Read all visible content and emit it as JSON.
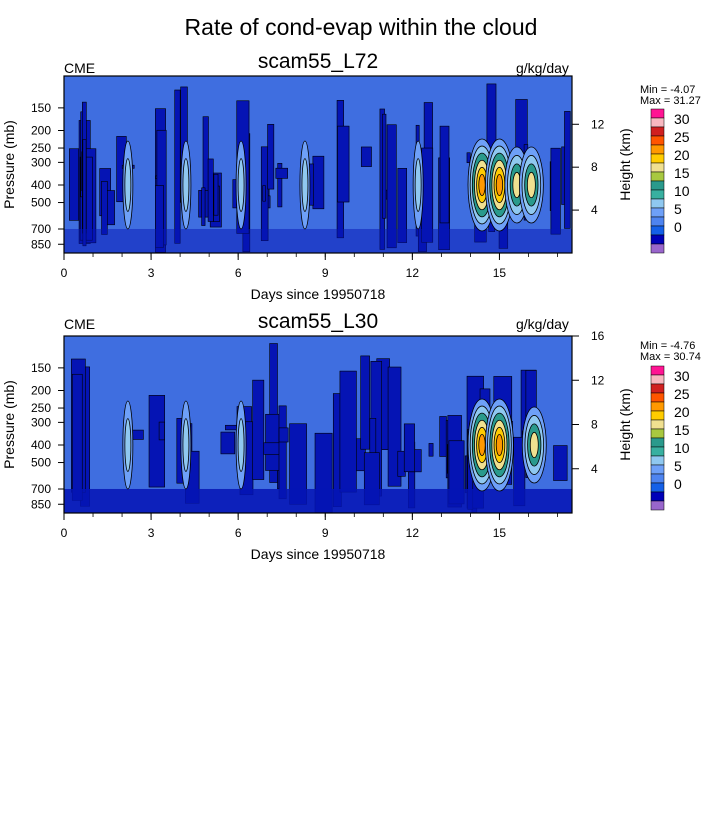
{
  "title": "Rate of cond-evap within the cloud",
  "colors": {
    "background_field": "#3f6ee0",
    "dark_band": "#0514b4",
    "levels": [
      "#9966cc",
      "#0000b8",
      "#1460e8",
      "#4e84f0",
      "#6ea0f8",
      "#8fc8f0",
      "#38b0a0",
      "#2a9a8c",
      "#a8c840",
      "#f0e090",
      "#ffcc00",
      "#ff9900",
      "#ff5500",
      "#d02020",
      "#f8b8c0",
      "#ff1493"
    ]
  },
  "chart_data": [
    {
      "type": "heatmap",
      "title": "scam55_L72",
      "variable": "CME",
      "units": "g/kg/day",
      "min_label": "Min =  -4.07",
      "max_label": "Max =  31.27",
      "min": -4.07,
      "max": 31.27,
      "xlabel": "Days since 19950718",
      "ylabel": "Pressure (mb)",
      "ylabel_right": "Height (km)",
      "xlim": [
        0,
        17.5
      ],
      "x_ticks": [
        "0",
        "3",
        "6",
        "9",
        "12",
        "15"
      ],
      "y_ticks": [
        "150",
        "200",
        "250",
        "300",
        "400",
        "500",
        "700",
        "850"
      ],
      "y_ticks_right": [
        "12",
        "8",
        "4"
      ],
      "colorbar_labels": [
        "30",
        "25",
        "20",
        "15",
        "10",
        "5",
        "0"
      ],
      "convective_events_days": [
        2.2,
        4.2,
        6.1,
        8.3,
        12.2,
        14.4,
        15.0,
        15.6,
        16.1
      ],
      "peak_event": {
        "day": 14.4,
        "pressure_mb": 400,
        "value": 31.27
      }
    },
    {
      "type": "heatmap",
      "title": "scam55_L30",
      "variable": "CME",
      "units": "g/kg/day",
      "min_label": "Min =  -4.76",
      "max_label": "Max =  30.74",
      "min": -4.76,
      "max": 30.74,
      "xlabel": "Days since 19950718",
      "ylabel": "Pressure (mb)",
      "ylabel_right": "Height (km)",
      "xlim": [
        0,
        17.5
      ],
      "x_ticks": [
        "0",
        "3",
        "6",
        "9",
        "12",
        "15"
      ],
      "y_ticks": [
        "150",
        "200",
        "250",
        "300",
        "400",
        "500",
        "700",
        "850"
      ],
      "y_ticks_right": [
        "16",
        "12",
        "8",
        "4"
      ],
      "colorbar_labels": [
        "30",
        "25",
        "20",
        "15",
        "10",
        "5",
        "0"
      ],
      "convective_events_days": [
        2.2,
        4.2,
        6.1,
        14.4,
        15.0,
        16.2
      ],
      "peak_event": {
        "day": 14.4,
        "pressure_mb": 400,
        "value": 30.74
      }
    }
  ]
}
